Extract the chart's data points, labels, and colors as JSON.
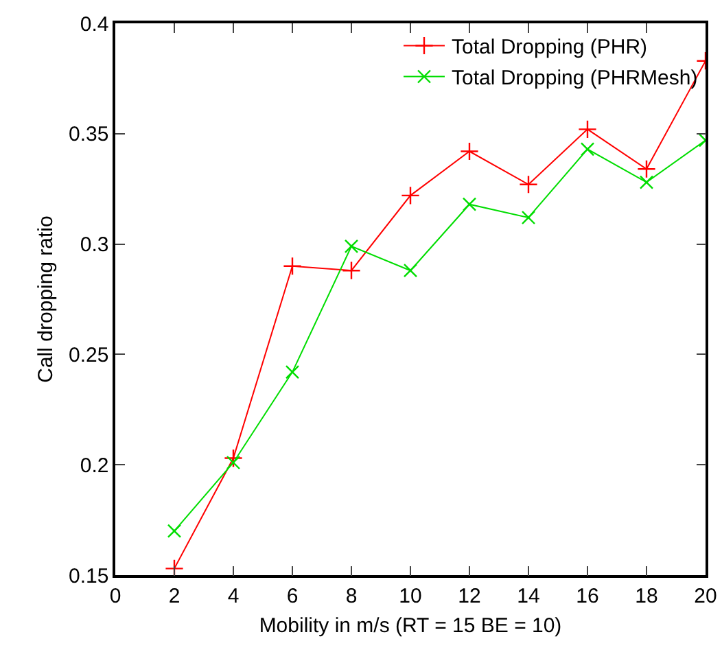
{
  "chart_data": {
    "type": "line",
    "xlabel": "Mobility in m/s (RT = 15 BE = 10)",
    "ylabel": "Call dropping ratio",
    "x": [
      2,
      4,
      6,
      8,
      10,
      12,
      14,
      16,
      18,
      20
    ],
    "series": [
      {
        "name": "Total Dropping (PHR)",
        "color": "#ff0000",
        "marker": "cross",
        "values": [
          0.153,
          0.203,
          0.29,
          0.288,
          0.322,
          0.342,
          0.327,
          0.352,
          0.334,
          0.383
        ]
      },
      {
        "name": "Total Dropping (PHRMesh)",
        "color": "#00dd00",
        "marker": "x",
        "values": [
          0.17,
          0.201,
          0.242,
          0.299,
          0.288,
          0.318,
          0.312,
          0.343,
          0.328,
          0.347
        ]
      }
    ],
    "xlim": [
      0,
      20
    ],
    "xticks": [
      0,
      2,
      4,
      6,
      8,
      10,
      12,
      14,
      16,
      18,
      20
    ],
    "ylim": [
      0.15,
      0.4
    ],
    "yticks": [
      0.15,
      0.2,
      0.25,
      0.3,
      0.35,
      0.4
    ],
    "grid": false,
    "legend": "top right",
    "line_style": "solid"
  }
}
